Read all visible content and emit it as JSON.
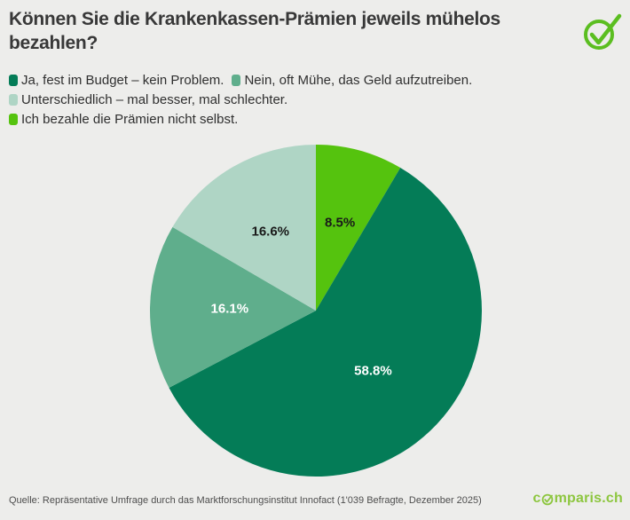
{
  "page": {
    "background": "#EDEDEB"
  },
  "header": {
    "title": "Können Sie die Krankenkassen-Prämien jeweils mühelos bezahlen?",
    "title_line1": "Können Sie die Krankenkassen-Prämien jeweils mühelos",
    "title_line2": "bezahlen?",
    "check_icon": "check-circle-icon",
    "check_color": "#5BBE20"
  },
  "legend": {
    "rows": [
      [
        {
          "label": "Ja, fest im Budget – kein Problem.",
          "color": "#047C57"
        },
        {
          "label": "Nein, oft Mühe, das Geld aufzutreiben.",
          "color": "#5FAE8C"
        }
      ],
      [
        {
          "label": "Unterschiedlich – mal besser, mal schlechter.",
          "color": "#AFD5C5"
        }
      ],
      [
        {
          "label": "Ich bezahle die Prämien nicht selbst.",
          "color": "#55C30E"
        }
      ]
    ]
  },
  "chart_data": {
    "type": "pie",
    "title": "Können Sie die Krankenkassen-Prämien jeweils mühelos bezahlen?",
    "start_angle_deg": 0,
    "direction": "clockwise",
    "total": 100,
    "legend_position": "top",
    "slices": [
      {
        "name": "Ich bezahle die Prämien nicht selbst.",
        "value": 8.5,
        "label": "8.5%",
        "color": "#55C30E",
        "label_color": "#1A1A1A",
        "label_r": 0.55
      },
      {
        "name": "Ja, fest im Budget – kein Problem.",
        "value": 58.8,
        "label": "58.8%",
        "color": "#047C57",
        "label_color": "#FFFFFF",
        "label_r": 0.5
      },
      {
        "name": "Nein, oft Mühe, das Geld aufzutreiben.",
        "value": 16.1,
        "label": "16.1%",
        "color": "#5FAE8C",
        "label_color": "#FFFFFF",
        "label_r": 0.52
      },
      {
        "name": "Unterschiedlich – mal besser, mal schlechter.",
        "value": 16.6,
        "label": "16.6%",
        "color": "#AFD5C5",
        "label_color": "#1A1A1A",
        "label_r": 0.55
      }
    ]
  },
  "footer": {
    "source": "Quelle: Repräsentative Umfrage durch das Marktforschungsinstitut Innofact (1'039 Befragte, Dezember 2025)",
    "logo_prefix": "c",
    "logo_suffix": "mparis.ch",
    "logo_color": "#8DC63F"
  }
}
